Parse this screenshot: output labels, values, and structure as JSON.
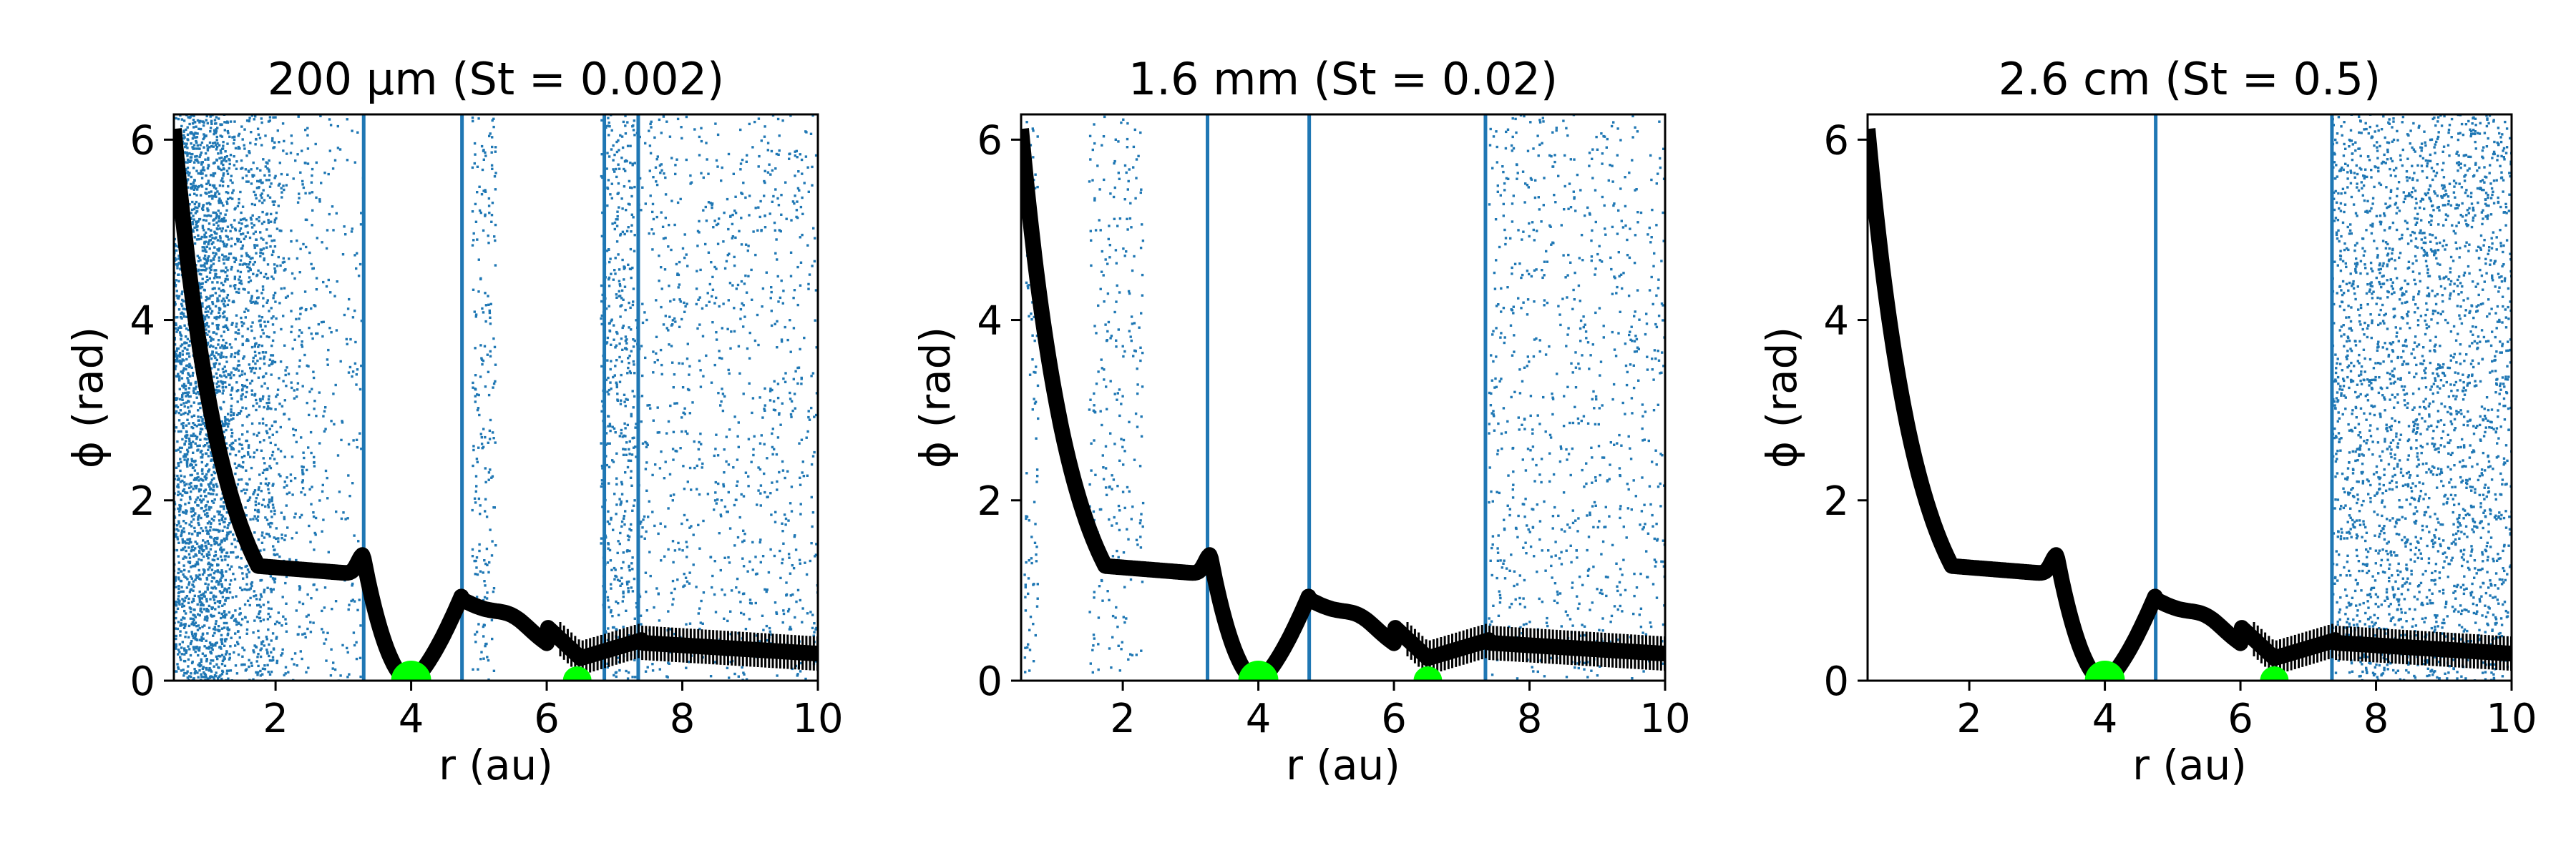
{
  "colors": {
    "particles": "#1f77b4",
    "spiral": "#000000",
    "planets": "#00ff00"
  },
  "chart_data": [
    {
      "type": "scatter",
      "title": "200 μm (St = 0.002)",
      "xlabel": "r (au)",
      "ylabel": "ϕ (rad)",
      "xlim": [
        0.5,
        10
      ],
      "ylim": [
        0,
        6.28
      ],
      "xticks": [
        2,
        4,
        6,
        8,
        10
      ],
      "yticks": [
        0,
        2,
        4,
        6
      ],
      "particle_bands": [
        {
          "r": [
            0.5,
            1.3
          ],
          "density": 2.6
        },
        {
          "r": [
            1.3,
            2.0
          ],
          "density": 1.2
        },
        {
          "r": [
            2.0,
            2.6
          ],
          "density": 0.45
        },
        {
          "r": [
            2.6,
            3.3
          ],
          "density": 0.22
        },
        {
          "r": [
            4.9,
            5.25
          ],
          "density": 0.55
        },
        {
          "r": [
            6.8,
            7.3
          ],
          "density": 0.85
        },
        {
          "r": [
            7.3,
            10.0
          ],
          "density": 0.32
        }
      ],
      "ring_lines_r": [
        3.3,
        4.75,
        6.85,
        7.35
      ],
      "planets": [
        {
          "r": 4.0,
          "phi": 0.0,
          "size": "large"
        },
        {
          "r": 6.45,
          "phi": 0.0,
          "size": "small"
        }
      ]
    },
    {
      "type": "scatter",
      "title": "1.6 mm (St = 0.02)",
      "xlabel": "r (au)",
      "ylabel": "ϕ (rad)",
      "xlim": [
        0.5,
        10
      ],
      "ylim": [
        0,
        6.28
      ],
      "xticks": [
        2,
        4,
        6,
        8,
        10
      ],
      "yticks": [
        0,
        2,
        4,
        6
      ],
      "particle_bands": [
        {
          "r": [
            0.55,
            0.75
          ],
          "density": 0.45
        },
        {
          "r": [
            1.5,
            2.3
          ],
          "density": 0.3
        },
        {
          "r": [
            7.4,
            10.0
          ],
          "density": 0.3
        }
      ],
      "ring_lines_r": [
        3.25,
        4.75,
        7.35
      ],
      "planets": [
        {
          "r": 4.0,
          "phi": 0.0,
          "size": "large"
        },
        {
          "r": 6.5,
          "phi": 0.0,
          "size": "small"
        }
      ]
    },
    {
      "type": "scatter",
      "title": "2.6 cm (St = 0.5)",
      "xlabel": "r (au)",
      "ylabel": "ϕ (rad)",
      "xlim": [
        0.5,
        10
      ],
      "ylim": [
        0,
        6.28
      ],
      "xticks": [
        2,
        4,
        6,
        8,
        10
      ],
      "yticks": [
        0,
        2,
        4,
        6
      ],
      "particle_bands": [
        {
          "r": [
            7.35,
            10.0
          ],
          "density": 0.9
        }
      ],
      "ring_lines_r": [
        4.75,
        7.35
      ],
      "planets": [
        {
          "r": 4.0,
          "phi": 0.0,
          "size": "large"
        },
        {
          "r": 6.5,
          "phi": 0.0,
          "size": "small"
        }
      ]
    }
  ]
}
